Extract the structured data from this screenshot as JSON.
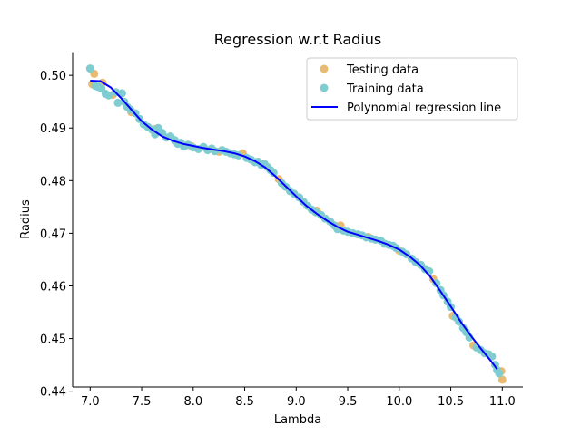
{
  "chart_data": {
    "type": "scatter",
    "title": "Regression w.r.t Radius",
    "xlabel": "Lambda",
    "ylabel": "Radius",
    "xlim": [
      6.83,
      11.2
    ],
    "ylim": [
      0.4408,
      0.5044
    ],
    "xticks": [
      "7.0",
      "7.5",
      "8.0",
      "8.5",
      "9.0",
      "9.5",
      "10.0",
      "10.5",
      "11.0"
    ],
    "yticks": [
      "0.44",
      "0.45",
      "0.46",
      "0.47",
      "0.48",
      "0.49",
      "0.50"
    ],
    "grid": false,
    "legend_position": "top-right",
    "series": [
      {
        "name": "Testing data",
        "kind": "scatter",
        "color": "#E8BB73",
        "points": [
          [
            7.02,
            0.4983
          ],
          [
            7.04,
            0.5003
          ],
          [
            7.12,
            0.4986
          ],
          [
            7.22,
            0.4963
          ],
          [
            7.4,
            0.493
          ],
          [
            7.63,
            0.4898
          ],
          [
            7.98,
            0.4866
          ],
          [
            8.25,
            0.4855
          ],
          [
            8.48,
            0.4852
          ],
          [
            8.83,
            0.4803
          ],
          [
            9.2,
            0.4743
          ],
          [
            9.43,
            0.4715
          ],
          [
            9.7,
            0.4693
          ],
          [
            10.0,
            0.4667
          ],
          [
            10.33,
            0.4613
          ],
          [
            10.52,
            0.4543
          ],
          [
            10.72,
            0.4487
          ],
          [
            10.99,
            0.4438
          ],
          [
            11.0,
            0.4422
          ]
        ]
      },
      {
        "name": "Training data",
        "kind": "scatter",
        "color": "#80CDD1",
        "points": [
          [
            7.0,
            0.5013
          ],
          [
            7.05,
            0.498
          ],
          [
            7.08,
            0.4978
          ],
          [
            7.11,
            0.4975
          ],
          [
            7.15,
            0.4965
          ],
          [
            7.18,
            0.4962
          ],
          [
            7.25,
            0.4968
          ],
          [
            7.27,
            0.4948
          ],
          [
            7.31,
            0.4966
          ],
          [
            7.33,
            0.495
          ],
          [
            7.36,
            0.494
          ],
          [
            7.39,
            0.4935
          ],
          [
            7.44,
            0.4928
          ],
          [
            7.48,
            0.4917
          ],
          [
            7.52,
            0.4907
          ],
          [
            7.56,
            0.4902
          ],
          [
            7.6,
            0.4897
          ],
          [
            7.63,
            0.4888
          ],
          [
            7.66,
            0.49
          ],
          [
            7.7,
            0.4891
          ],
          [
            7.74,
            0.4882
          ],
          [
            7.78,
            0.4884
          ],
          [
            7.82,
            0.4877
          ],
          [
            7.85,
            0.487
          ],
          [
            7.88,
            0.4872
          ],
          [
            7.91,
            0.4865
          ],
          [
            7.95,
            0.4868
          ],
          [
            8.0,
            0.4863
          ],
          [
            8.05,
            0.486
          ],
          [
            8.1,
            0.4864
          ],
          [
            8.14,
            0.4858
          ],
          [
            8.18,
            0.4861
          ],
          [
            8.21,
            0.4856
          ],
          [
            8.28,
            0.4858
          ],
          [
            8.32,
            0.4855
          ],
          [
            8.36,
            0.4852
          ],
          [
            8.4,
            0.485
          ],
          [
            8.44,
            0.4848
          ],
          [
            8.52,
            0.4843
          ],
          [
            8.56,
            0.484
          ],
          [
            8.6,
            0.4835
          ],
          [
            8.63,
            0.4836
          ],
          [
            8.66,
            0.483
          ],
          [
            8.69,
            0.4832
          ],
          [
            8.72,
            0.4826
          ],
          [
            8.75,
            0.482
          ],
          [
            8.78,
            0.4815
          ],
          [
            8.86,
            0.4795
          ],
          [
            8.9,
            0.4788
          ],
          [
            8.94,
            0.478
          ],
          [
            8.98,
            0.4775
          ],
          [
            9.03,
            0.4768
          ],
          [
            9.07,
            0.476
          ],
          [
            9.11,
            0.4752
          ],
          [
            9.15,
            0.4745
          ],
          [
            9.19,
            0.474
          ],
          [
            9.24,
            0.4735
          ],
          [
            9.28,
            0.4728
          ],
          [
            9.33,
            0.4722
          ],
          [
            9.37,
            0.4715
          ],
          [
            9.4,
            0.4708
          ],
          [
            9.46,
            0.4705
          ],
          [
            9.5,
            0.4703
          ],
          [
            9.55,
            0.47
          ],
          [
            9.6,
            0.4698
          ],
          [
            9.64,
            0.4696
          ],
          [
            9.68,
            0.4692
          ],
          [
            9.73,
            0.469
          ],
          [
            9.77,
            0.4688
          ],
          [
            9.82,
            0.4686
          ],
          [
            9.86,
            0.468
          ],
          [
            9.9,
            0.4678
          ],
          [
            9.94,
            0.4676
          ],
          [
            9.97,
            0.4672
          ],
          [
            10.03,
            0.4665
          ],
          [
            10.07,
            0.466
          ],
          [
            10.12,
            0.4652
          ],
          [
            10.16,
            0.4645
          ],
          [
            10.21,
            0.464
          ],
          [
            10.25,
            0.4632
          ],
          [
            10.29,
            0.4628
          ],
          [
            10.36,
            0.4605
          ],
          [
            10.4,
            0.4592
          ],
          [
            10.43,
            0.4582
          ],
          [
            10.47,
            0.457
          ],
          [
            10.5,
            0.456
          ],
          [
            10.55,
            0.454
          ],
          [
            10.58,
            0.4532
          ],
          [
            10.62,
            0.452
          ],
          [
            10.65,
            0.4512
          ],
          [
            10.68,
            0.4502
          ],
          [
            10.75,
            0.4483
          ],
          [
            10.79,
            0.4478
          ],
          [
            10.83,
            0.4472
          ],
          [
            10.87,
            0.447
          ],
          [
            10.9,
            0.4466
          ],
          [
            10.93,
            0.445
          ],
          [
            10.95,
            0.444
          ],
          [
            10.97,
            0.4434
          ]
        ]
      },
      {
        "name": "Polynomial regression line",
        "kind": "line",
        "color": "#0000FF",
        "points": [
          [
            7.0,
            0.499
          ],
          [
            7.1,
            0.4989
          ],
          [
            7.2,
            0.4977
          ],
          [
            7.3,
            0.4957
          ],
          [
            7.4,
            0.4935
          ],
          [
            7.5,
            0.4913
          ],
          [
            7.6,
            0.4897
          ],
          [
            7.7,
            0.4884
          ],
          [
            7.8,
            0.4876
          ],
          [
            7.9,
            0.487
          ],
          [
            8.0,
            0.4866
          ],
          [
            8.1,
            0.4862
          ],
          [
            8.2,
            0.4859
          ],
          [
            8.3,
            0.4856
          ],
          [
            8.4,
            0.4852
          ],
          [
            8.5,
            0.4846
          ],
          [
            8.6,
            0.4837
          ],
          [
            8.7,
            0.4825
          ],
          [
            8.8,
            0.4808
          ],
          [
            8.9,
            0.4789
          ],
          [
            9.0,
            0.477
          ],
          [
            9.1,
            0.4752
          ],
          [
            9.2,
            0.4737
          ],
          [
            9.3,
            0.4724
          ],
          [
            9.4,
            0.4712
          ],
          [
            9.5,
            0.4703
          ],
          [
            9.6,
            0.4697
          ],
          [
            9.7,
            0.4691
          ],
          [
            9.8,
            0.4685
          ],
          [
            9.9,
            0.4678
          ],
          [
            10.0,
            0.4669
          ],
          [
            10.1,
            0.4656
          ],
          [
            10.2,
            0.464
          ],
          [
            10.3,
            0.4618
          ],
          [
            10.4,
            0.459
          ],
          [
            10.5,
            0.4561
          ],
          [
            10.6,
            0.4531
          ],
          [
            10.7,
            0.4504
          ],
          [
            10.8,
            0.4479
          ],
          [
            10.9,
            0.4455
          ],
          [
            10.95,
            0.4442
          ]
        ]
      }
    ]
  }
}
